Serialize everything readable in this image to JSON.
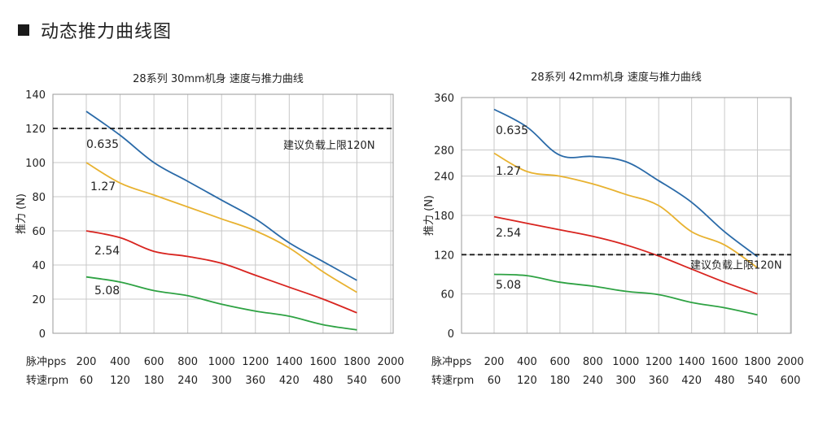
{
  "heading": "动态推力曲线图",
  "x_row_labels": {
    "pps": "脉冲pps",
    "rpm": "转速rpm"
  },
  "colors": {
    "0.635": "#2a6aa8",
    "1.27": "#e8b230",
    "2.54": "#d8241f",
    "5.08": "#2ea243"
  },
  "chart_data": [
    {
      "type": "line",
      "title": "28系列 30mm机身 速度与推力曲线",
      "ylabel": "推力 (N)",
      "ylim": [
        0,
        140
      ],
      "yticks": [
        0,
        20,
        40,
        60,
        80,
        100,
        120,
        140
      ],
      "x_pps": [
        200,
        400,
        600,
        800,
        1000,
        1200,
        1400,
        1600,
        1800,
        2000
      ],
      "x_rpm": [
        60,
        120,
        180,
        240,
        300,
        360,
        420,
        480,
        540,
        600
      ],
      "xlim": [
        200,
        2000
      ],
      "grid": true,
      "limit": {
        "value": 120,
        "label": "建议负载上限120N"
      },
      "series": [
        {
          "name": "0.635",
          "x": [
            200,
            400,
            600,
            800,
            1000,
            1200,
            1400,
            1600,
            1800
          ],
          "y": [
            130,
            116,
            100,
            89,
            78,
            67,
            53,
            42,
            31
          ]
        },
        {
          "name": "1.27",
          "x": [
            200,
            400,
            600,
            800,
            1000,
            1200,
            1400,
            1600,
            1800
          ],
          "y": [
            100,
            88,
            81,
            74,
            67,
            60,
            50,
            36,
            24
          ]
        },
        {
          "name": "2.54",
          "x": [
            200,
            400,
            600,
            800,
            1000,
            1200,
            1400,
            1600,
            1800
          ],
          "y": [
            60,
            56,
            48,
            45,
            41,
            34,
            27,
            20,
            12
          ]
        },
        {
          "name": "5.08",
          "x": [
            200,
            400,
            600,
            800,
            1000,
            1200,
            1400,
            1600,
            1800
          ],
          "y": [
            33,
            30,
            25,
            22,
            17,
            13,
            10,
            5,
            2
          ]
        }
      ]
    },
    {
      "type": "line",
      "title": "28系列 42mm机身 速度与推力曲线",
      "ylabel": "推力 (N)",
      "ylim": [
        0,
        360
      ],
      "yticks": [
        0,
        60,
        120,
        180,
        240,
        280,
        360
      ],
      "x_pps": [
        200,
        400,
        600,
        800,
        1000,
        1200,
        1400,
        1600,
        1800,
        2000
      ],
      "x_rpm": [
        60,
        120,
        180,
        240,
        300,
        360,
        420,
        480,
        540,
        600
      ],
      "xlim": [
        200,
        2000
      ],
      "grid": true,
      "limit": {
        "value": 120,
        "label": "建议负载上限120N"
      },
      "series": [
        {
          "name": "0.635",
          "x": [
            200,
            400,
            600,
            800,
            1000,
            1200,
            1400,
            1600,
            1800
          ],
          "y": [
            342,
            315,
            272,
            270,
            262,
            233,
            200,
            155,
            117
          ]
        },
        {
          "name": "1.27",
          "x": [
            200,
            400,
            600,
            800,
            1000,
            1200,
            1400,
            1600,
            1800
          ],
          "y": [
            275,
            247,
            240,
            228,
            212,
            195,
            155,
            135,
            100
          ]
        },
        {
          "name": "2.54",
          "x": [
            200,
            400,
            600,
            800,
            1000,
            1200,
            1400,
            1600,
            1800
          ],
          "y": [
            178,
            168,
            158,
            148,
            135,
            118,
            98,
            78,
            60
          ]
        },
        {
          "name": "5.08",
          "x": [
            200,
            400,
            600,
            800,
            1000,
            1200,
            1400,
            1600,
            1800
          ],
          "y": [
            90,
            88,
            78,
            72,
            64,
            59,
            47,
            39,
            28
          ]
        }
      ]
    }
  ]
}
